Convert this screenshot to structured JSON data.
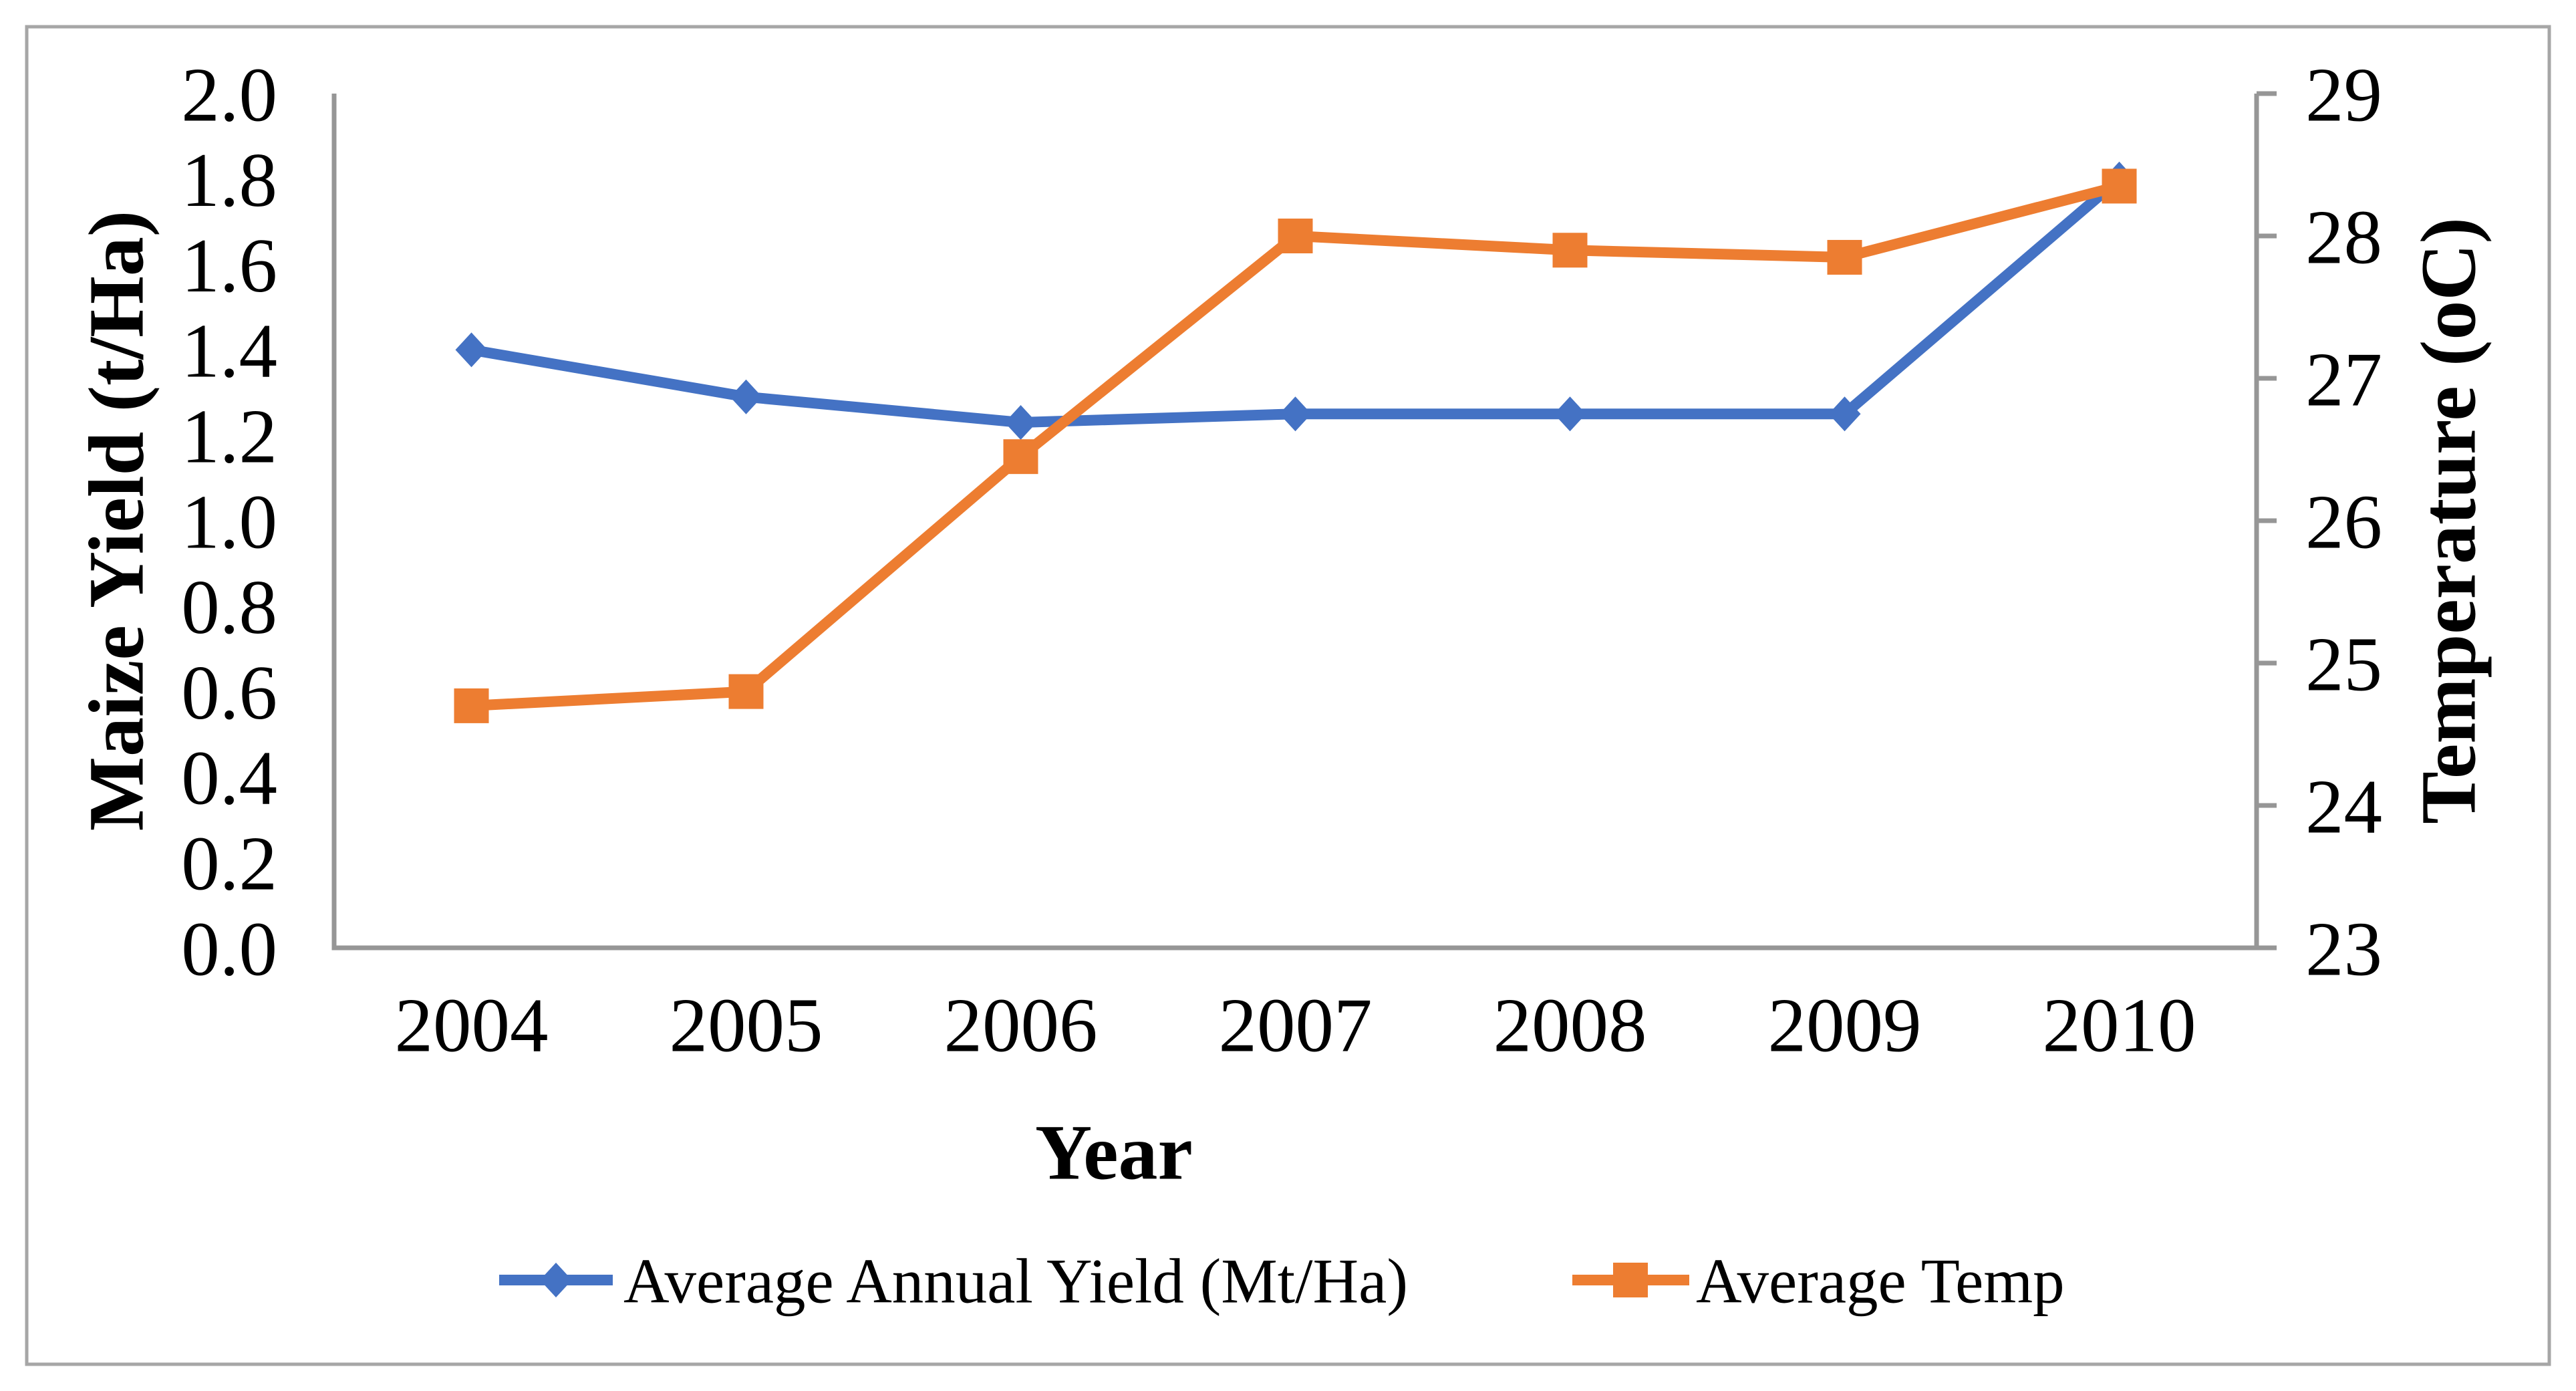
{
  "chart_data": {
    "type": "line",
    "title": "",
    "categories": [
      "2004",
      "2005",
      "2006",
      "2007",
      "2008",
      "2009",
      "2010"
    ],
    "series": [
      {
        "name": "Average Annual Yield (Mt/Ha)",
        "axis": "left",
        "color": "#4472C4",
        "marker": "diamond",
        "values": [
          1.4,
          1.29,
          1.23,
          1.25,
          1.25,
          1.25,
          1.8
        ]
      },
      {
        "name": "Average Temp",
        "axis": "right",
        "color": "#ED7D31",
        "marker": "square",
        "values": [
          24.7,
          24.8,
          26.45,
          28.0,
          27.9,
          27.85,
          28.35
        ]
      }
    ],
    "x_axis": {
      "title": "Year",
      "tick_labels": [
        "2004",
        "2005",
        "2006",
        "2007",
        "2008",
        "2009",
        "2010"
      ]
    },
    "left_axis": {
      "title": "Maize Yield (t/Ha)",
      "min": 0.0,
      "max": 2.0,
      "step": 0.2,
      "tick_labels": [
        "0.0",
        "0.2",
        "0.4",
        "0.6",
        "0.8",
        "1.0",
        "1.2",
        "1.4",
        "1.6",
        "1.8",
        "2.0"
      ]
    },
    "right_axis": {
      "title": "Temperature (oC)",
      "min": 23,
      "max": 29,
      "step": 1,
      "tick_labels": [
        "23",
        "24",
        "25",
        "26",
        "27",
        "28",
        "29"
      ]
    },
    "legend": {
      "position": "bottom",
      "entries": [
        "Average Annual Yield (Mt/Ha)",
        "Average Temp"
      ]
    },
    "grid": false
  },
  "style": {
    "axis_line_color": "#969696",
    "border_color": "#A6A6A6",
    "text_color": "#000000",
    "background": "#FFFFFF"
  }
}
